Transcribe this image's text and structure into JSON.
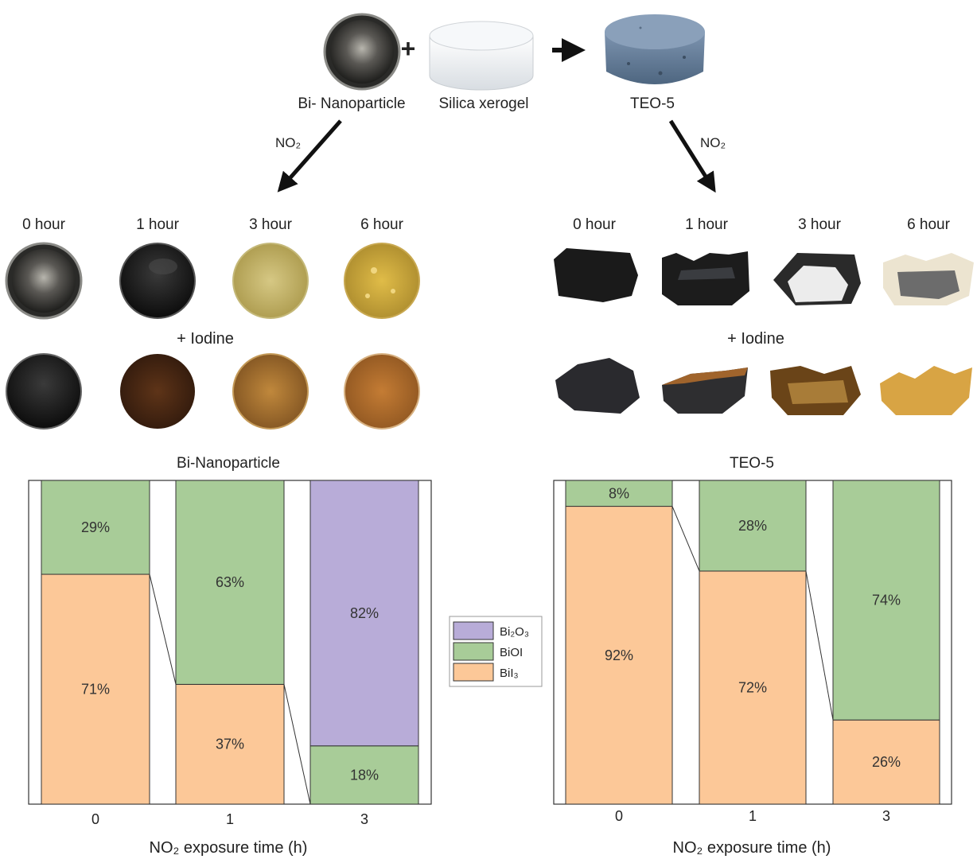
{
  "top": {
    "bi_label": "Bi- Nanoparticle",
    "plus": "+",
    "silica_label": "Silica xerogel",
    "teo_label": "TEO-5",
    "no2_left": "NO₂",
    "no2_right": "NO₂"
  },
  "photos": {
    "time_labels": [
      "0 hour",
      "1 hour",
      "3 hour",
      "6 hour"
    ],
    "iodine_label": "+ Iodine"
  },
  "colors": {
    "Bi2O3": "#b8acd8",
    "BiOI": "#a8cc98",
    "BiI3": "#fcc898",
    "stroke": "#333333"
  },
  "legend": [
    "Bi₂O₃",
    "BiOI",
    "BiI₃"
  ],
  "chart_data": [
    {
      "type": "bar",
      "stacked": true,
      "title": "Bi-Nanoparticle",
      "xlabel": "NO₂ exposure time (h)",
      "ylabel": "",
      "categories": [
        "0",
        "1",
        "3"
      ],
      "ylim": [
        0,
        100
      ],
      "series": [
        {
          "name": "BiI₃",
          "values": [
            71,
            37,
            0
          ]
        },
        {
          "name": "BiOI",
          "values": [
            29,
            63,
            18
          ]
        },
        {
          "name": "Bi₂O₃",
          "values": [
            0,
            0,
            82
          ]
        }
      ],
      "value_labels": [
        [
          "71%",
          "37%",
          ""
        ],
        [
          "29%",
          "63%",
          "18%"
        ],
        [
          "",
          "",
          "82%"
        ]
      ],
      "legend": "center-right"
    },
    {
      "type": "bar",
      "stacked": true,
      "title": "TEO-5",
      "xlabel": "NO₂ exposure time (h)",
      "ylabel": "",
      "categories": [
        "0",
        "1",
        "3"
      ],
      "ylim": [
        0,
        100
      ],
      "series": [
        {
          "name": "BiI₃",
          "values": [
            92,
            72,
            26
          ]
        },
        {
          "name": "BiOI",
          "values": [
            8,
            28,
            74
          ]
        },
        {
          "name": "Bi₂O₃",
          "values": [
            0,
            0,
            0
          ]
        }
      ],
      "value_labels": [
        [
          "92%",
          "72%",
          "26%"
        ],
        [
          "8%",
          "28%",
          "74%"
        ],
        [
          "",
          "",
          ""
        ]
      ],
      "legend": "center-left"
    }
  ]
}
